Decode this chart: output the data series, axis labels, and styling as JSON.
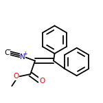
{
  "background": "#ffffff",
  "bond_color": "#000000",
  "bond_width": 1.3,
  "n_color": "#0000cd",
  "o_color": "#ff0000",
  "c_color": "#000000",
  "figsize": [
    1.5,
    1.5
  ],
  "dpi": 100,
  "xlim": [
    0.0,
    1.0
  ],
  "ylim": [
    0.05,
    1.05
  ],
  "label_fontsize": 7.5,
  "charge_fontsize": 5.5
}
